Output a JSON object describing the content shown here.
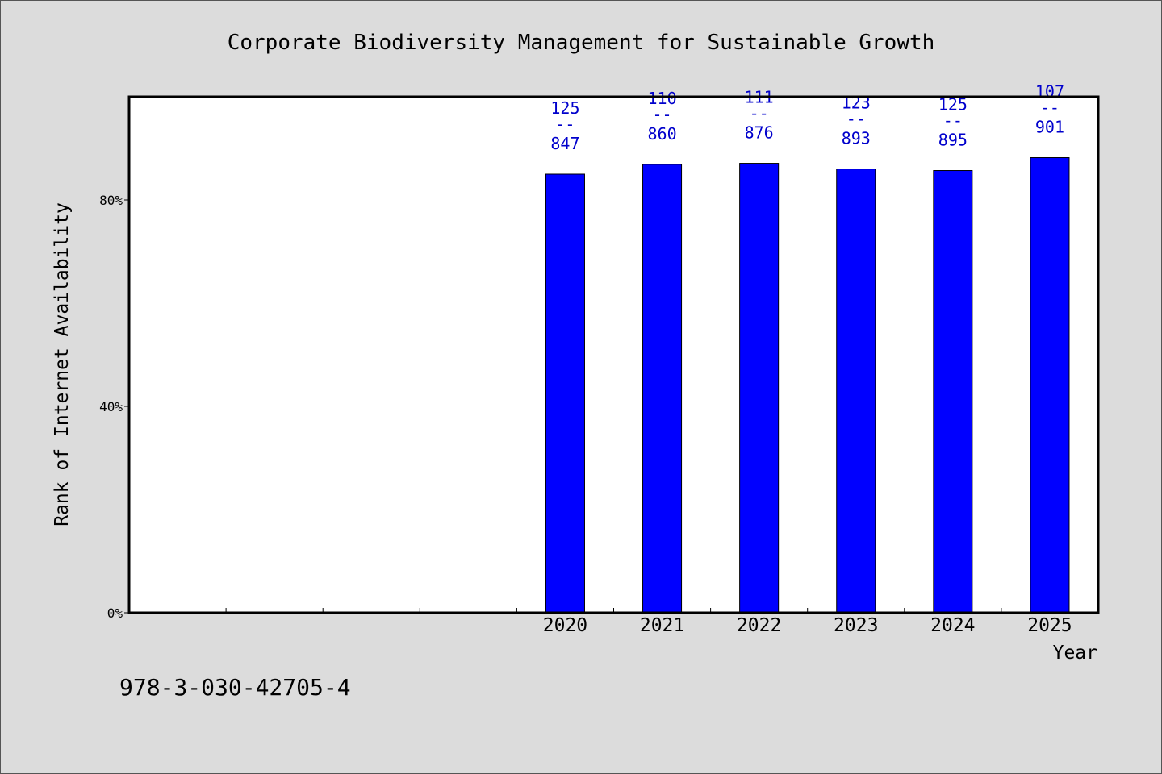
{
  "chart_data": {
    "type": "bar",
    "title": "Corporate Biodiversity Management for Sustainable Growth",
    "xlabel": "Year",
    "ylabel": "Rank of Internet Availability",
    "categories": [
      "",
      "",
      "",
      "",
      "2020",
      "2021",
      "2022",
      "2023",
      "2024",
      "2025"
    ],
    "values": [
      null,
      null,
      null,
      null,
      84.7,
      86.0,
      87.6,
      89.3,
      89.5,
      90.1
    ],
    "bar_percent": [
      null,
      null,
      null,
      null,
      85.0,
      86.9,
      87.1,
      86.0,
      85.7,
      88.2
    ],
    "data_labels": [
      null,
      null,
      null,
      null,
      {
        "top": "125",
        "sep": "--",
        "bottom": "847"
      },
      {
        "top": "110",
        "sep": "--",
        "bottom": "860"
      },
      {
        "top": "111",
        "sep": "--",
        "bottom": "876"
      },
      {
        "top": "123",
        "sep": "--",
        "bottom": "893"
      },
      {
        "top": "125",
        "sep": "--",
        "bottom": "895"
      },
      {
        "top": "107",
        "sep": "--",
        "bottom": "901"
      }
    ],
    "yticks": [
      {
        "value": 0,
        "label": "0%"
      },
      {
        "value": 40,
        "label": "40%"
      },
      {
        "value": 80,
        "label": "80%"
      }
    ],
    "ylim": [
      0,
      100
    ],
    "grid": false,
    "bar_color": "#0000ff",
    "label_color": "#0000cc"
  },
  "footer": {
    "isbn": "978-3-030-42705-4"
  }
}
